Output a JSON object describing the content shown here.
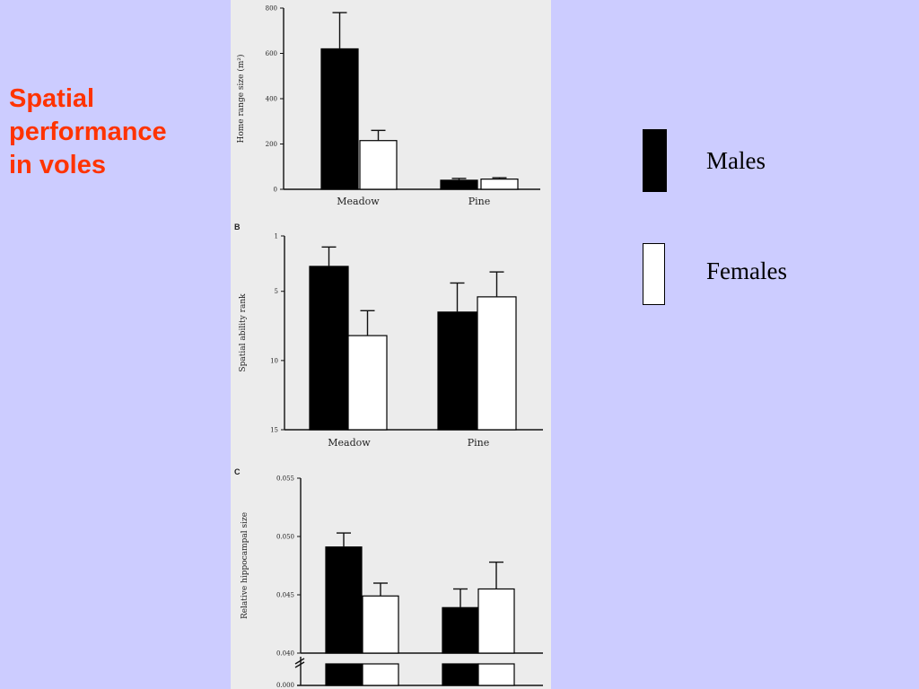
{
  "slide": {
    "title": "Spatial\nperformance\nin voles"
  },
  "legend": {
    "items": [
      {
        "label": "Males",
        "color": "#000000"
      },
      {
        "label": "Females",
        "color": "#ffffff"
      }
    ]
  },
  "chart_data": [
    {
      "type": "bar",
      "panel": "",
      "ylabel": "Home range size (m²)",
      "categories": [
        "Meadow",
        "Pine"
      ],
      "ylim": [
        0,
        800
      ],
      "yticks": [
        0,
        200,
        400,
        600,
        800
      ],
      "inverted": false,
      "series": [
        {
          "name": "Males",
          "values": [
            620,
            40
          ],
          "errors": [
            160,
            8
          ]
        },
        {
          "name": "Females",
          "values": [
            215,
            45
          ],
          "errors": [
            45,
            6
          ]
        }
      ]
    },
    {
      "type": "bar",
      "panel": "B",
      "ylabel": "Spatial ability rank",
      "categories": [
        "Meadow",
        "Pine"
      ],
      "ylim": [
        1,
        15
      ],
      "yticks": [
        1,
        5,
        10,
        15
      ],
      "inverted": true,
      "series": [
        {
          "name": "Males",
          "values": [
            3.2,
            6.5
          ],
          "errors": [
            1.4,
            2.1
          ]
        },
        {
          "name": "Females",
          "values": [
            8.2,
            5.4
          ],
          "errors": [
            1.8,
            1.8
          ]
        }
      ]
    },
    {
      "type": "bar",
      "panel": "C",
      "ylabel": "Relative hippocampal size",
      "categories": [
        "",
        ""
      ],
      "ylim": [
        0.04,
        0.055
      ],
      "yticks": [
        0.04,
        0.045,
        0.05,
        0.055
      ],
      "ytick_labels": [
        "0.040",
        "0.045",
        "0.050",
        "0.055"
      ],
      "axis_break_label": "0.000",
      "inverted": false,
      "series": [
        {
          "name": "Males",
          "values": [
            0.0491,
            0.0439
          ],
          "errors": [
            0.0012,
            0.0016
          ]
        },
        {
          "name": "Females",
          "values": [
            0.0449,
            0.0455
          ],
          "errors": [
            0.0011,
            0.0023
          ]
        }
      ]
    }
  ]
}
